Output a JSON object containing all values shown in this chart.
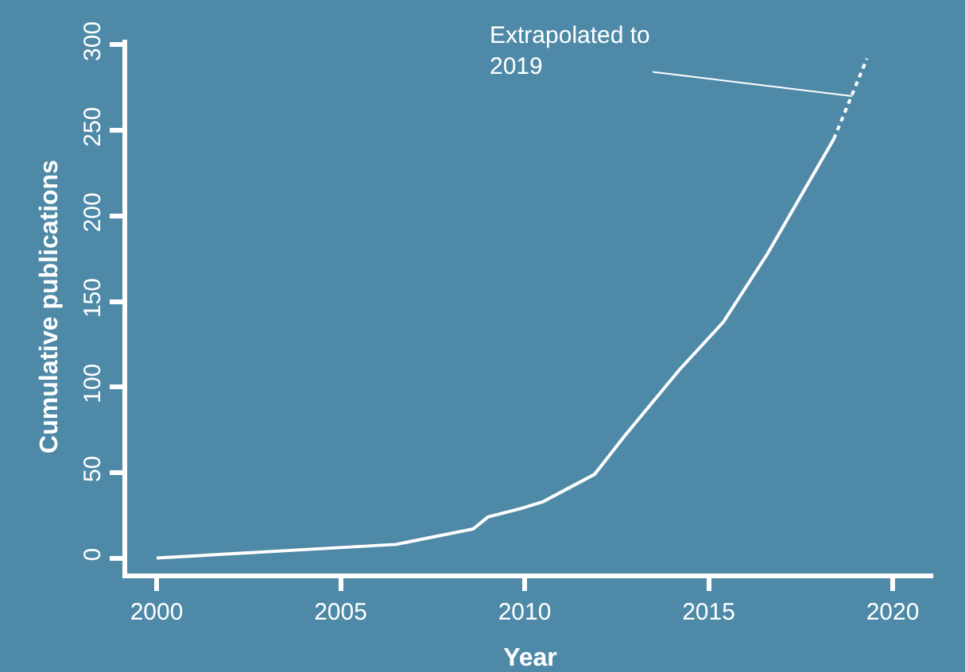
{
  "chart_data": {
    "type": "line",
    "xlabel": "Year",
    "ylabel": "Cumulative publications",
    "xlim": [
      1999.2,
      2021.1
    ],
    "ylim": [
      -9,
      303
    ],
    "xticks": [
      2000,
      2005,
      2010,
      2015,
      2020
    ],
    "yticks": [
      0,
      50,
      100,
      150,
      200,
      250,
      300
    ],
    "marker": "none",
    "series": [
      {
        "color": "#ffffff",
        "line_style": "solid",
        "x": [
          2000,
          2006.5,
          2008.6,
          2009,
          2009.9,
          2010.5,
          2011.9,
          2012.7,
          2014.2,
          2015.4,
          2016.6,
          2018.4
        ],
        "values": [
          0,
          8,
          17,
          24,
          29,
          33,
          49,
          71,
          110,
          138,
          178,
          245
        ]
      },
      {
        "color": "#ffffff",
        "line_style": "dotted",
        "x": [
          2018.4,
          2019.3
        ],
        "values": [
          245,
          292
        ]
      }
    ],
    "annotations": [
      {
        "text": "Extrapolated to\n2019",
        "x": 2018.9,
        "y": 270
      }
    ]
  }
}
